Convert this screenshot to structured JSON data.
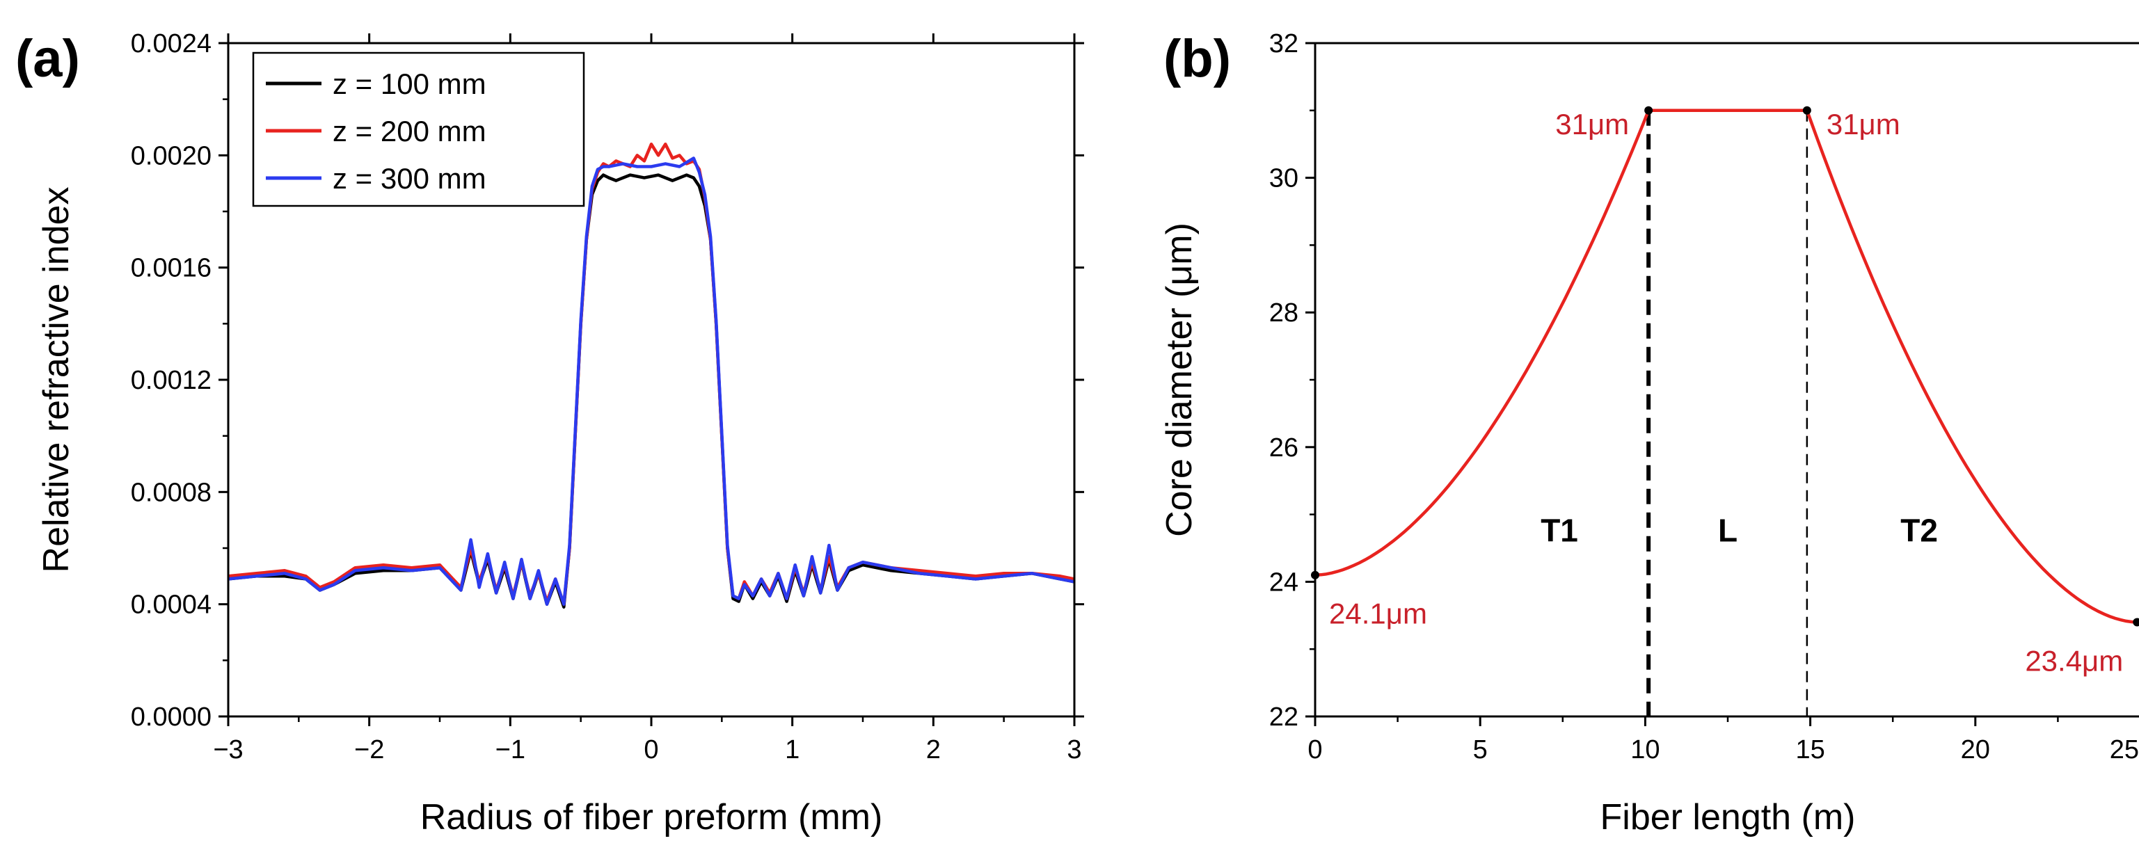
{
  "chart_data": [
    {
      "panel": "(a)",
      "type": "line",
      "title": "",
      "xlabel": "Radius of fiber preform (mm)",
      "ylabel": "Relative refractive index",
      "xlim": [
        -3,
        3
      ],
      "ylim": [
        0,
        0.0024
      ],
      "xticks": [
        -3,
        -2,
        -1,
        0,
        1,
        2,
        3
      ],
      "xtick_labels": [
        "−3",
        "−2",
        "−1",
        "0",
        "1",
        "2",
        "3"
      ],
      "yticks": [
        0,
        0.0004,
        0.0008,
        0.0012,
        0.0016,
        0.002,
        0.0024
      ],
      "ytick_labels": [
        "0.0000",
        "0.0004",
        "0.0008",
        "0.0012",
        "0.0016",
        "0.0020",
        "0.0024"
      ],
      "grid": false,
      "legend": "top-left",
      "series": [
        {
          "name": "z = 100 mm",
          "color": "#000000",
          "x": [
            -3.0,
            -2.8,
            -2.6,
            -2.45,
            -2.35,
            -2.25,
            -2.1,
            -1.9,
            -1.7,
            -1.5,
            -1.35,
            -1.28,
            -1.22,
            -1.16,
            -1.1,
            -1.04,
            -0.98,
            -0.92,
            -0.86,
            -0.8,
            -0.74,
            -0.68,
            -0.62,
            -0.58,
            -0.54,
            -0.5,
            -0.46,
            -0.42,
            -0.38,
            -0.34,
            -0.3,
            -0.25,
            -0.15,
            -0.05,
            0.05,
            0.15,
            0.25,
            0.3,
            0.34,
            0.38,
            0.42,
            0.46,
            0.5,
            0.54,
            0.58,
            0.62,
            0.66,
            0.72,
            0.78,
            0.84,
            0.9,
            0.96,
            1.02,
            1.08,
            1.14,
            1.2,
            1.26,
            1.32,
            1.4,
            1.5,
            1.7,
            1.9,
            2.1,
            2.3,
            2.5,
            2.7,
            2.9,
            3.0
          ],
          "y": [
            0.00049,
            0.0005,
            0.0005,
            0.00049,
            0.00045,
            0.00047,
            0.00051,
            0.00052,
            0.00052,
            0.00053,
            0.00045,
            0.00059,
            0.00047,
            0.00056,
            0.00044,
            0.00053,
            0.00042,
            0.00055,
            0.00042,
            0.00051,
            0.0004,
            0.00048,
            0.00039,
            0.0006,
            0.001,
            0.0014,
            0.0017,
            0.00186,
            0.00191,
            0.00193,
            0.00192,
            0.00191,
            0.00193,
            0.00192,
            0.00193,
            0.00191,
            0.00193,
            0.00192,
            0.00189,
            0.00182,
            0.0017,
            0.0014,
            0.001,
            0.0006,
            0.00042,
            0.00041,
            0.00047,
            0.00042,
            0.00048,
            0.00043,
            0.0005,
            0.00041,
            0.00052,
            0.00043,
            0.00054,
            0.00044,
            0.00056,
            0.00045,
            0.00052,
            0.00054,
            0.00052,
            0.00051,
            0.0005,
            0.00049,
            0.0005,
            0.00051,
            0.00049,
            0.00048
          ]
        },
        {
          "name": "z = 200 mm",
          "color": "#e8231f",
          "x": [
            -3.0,
            -2.8,
            -2.6,
            -2.45,
            -2.35,
            -2.25,
            -2.1,
            -1.9,
            -1.7,
            -1.5,
            -1.35,
            -1.28,
            -1.22,
            -1.16,
            -1.1,
            -1.04,
            -0.98,
            -0.92,
            -0.86,
            -0.8,
            -0.74,
            -0.68,
            -0.62,
            -0.58,
            -0.54,
            -0.5,
            -0.46,
            -0.42,
            -0.38,
            -0.34,
            -0.3,
            -0.25,
            -0.15,
            -0.1,
            -0.05,
            0.0,
            0.05,
            0.1,
            0.15,
            0.2,
            0.25,
            0.3,
            0.34,
            0.38,
            0.42,
            0.46,
            0.5,
            0.54,
            0.58,
            0.62,
            0.66,
            0.72,
            0.78,
            0.84,
            0.9,
            0.96,
            1.02,
            1.08,
            1.14,
            1.2,
            1.26,
            1.32,
            1.4,
            1.5,
            1.7,
            1.9,
            2.1,
            2.3,
            2.5,
            2.7,
            2.9,
            3.0
          ],
          "y": [
            0.0005,
            0.00051,
            0.00052,
            0.0005,
            0.00046,
            0.00048,
            0.00053,
            0.00054,
            0.00053,
            0.00054,
            0.00046,
            0.0006,
            0.00048,
            0.00057,
            0.00045,
            0.00054,
            0.00043,
            0.00055,
            0.00043,
            0.00051,
            0.00041,
            0.00049,
            0.0004,
            0.0006,
            0.001,
            0.0014,
            0.0017,
            0.00188,
            0.00194,
            0.00197,
            0.00196,
            0.00198,
            0.00196,
            0.002,
            0.00198,
            0.00204,
            0.002,
            0.00204,
            0.00199,
            0.002,
            0.00197,
            0.00198,
            0.00195,
            0.00185,
            0.0017,
            0.0014,
            0.001,
            0.0006,
            0.00043,
            0.00042,
            0.00048,
            0.00043,
            0.00049,
            0.00044,
            0.00051,
            0.00042,
            0.00053,
            0.00044,
            0.00055,
            0.00045,
            0.00057,
            0.00046,
            0.00053,
            0.00055,
            0.00053,
            0.00052,
            0.00051,
            0.0005,
            0.00051,
            0.00051,
            0.0005,
            0.00049
          ]
        },
        {
          "name": "z = 300 mm",
          "color": "#2b3bef",
          "x": [
            -3.0,
            -2.8,
            -2.6,
            -2.45,
            -2.35,
            -2.25,
            -2.1,
            -1.9,
            -1.7,
            -1.5,
            -1.35,
            -1.28,
            -1.22,
            -1.16,
            -1.1,
            -1.04,
            -0.98,
            -0.92,
            -0.86,
            -0.8,
            -0.74,
            -0.68,
            -0.62,
            -0.58,
            -0.54,
            -0.5,
            -0.46,
            -0.42,
            -0.38,
            -0.34,
            -0.3,
            -0.2,
            -0.1,
            0.0,
            0.1,
            0.2,
            0.3,
            0.34,
            0.38,
            0.42,
            0.46,
            0.5,
            0.54,
            0.58,
            0.62,
            0.66,
            0.72,
            0.78,
            0.84,
            0.9,
            0.96,
            1.02,
            1.08,
            1.14,
            1.2,
            1.26,
            1.32,
            1.4,
            1.5,
            1.7,
            1.9,
            2.1,
            2.3,
            2.5,
            2.7,
            2.9,
            3.0
          ],
          "y": [
            0.00049,
            0.0005,
            0.00051,
            0.00049,
            0.00045,
            0.00047,
            0.00052,
            0.00053,
            0.00052,
            0.00053,
            0.00045,
            0.00063,
            0.00046,
            0.00058,
            0.00044,
            0.00055,
            0.00042,
            0.00056,
            0.00042,
            0.00052,
            0.0004,
            0.00049,
            0.0004,
            0.00061,
            0.00101,
            0.00141,
            0.00171,
            0.00189,
            0.00195,
            0.00196,
            0.00196,
            0.00197,
            0.00196,
            0.00196,
            0.00197,
            0.00196,
            0.00199,
            0.00194,
            0.00186,
            0.00171,
            0.00141,
            0.00101,
            0.00061,
            0.00043,
            0.00042,
            0.00047,
            0.00043,
            0.00049,
            0.00043,
            0.00051,
            0.00042,
            0.00054,
            0.00043,
            0.00057,
            0.00044,
            0.00061,
            0.00045,
            0.00053,
            0.00055,
            0.00053,
            0.00051,
            0.0005,
            0.00049,
            0.0005,
            0.00051,
            0.00049,
            0.00048
          ]
        }
      ]
    },
    {
      "panel": "(b)",
      "type": "line",
      "title": "",
      "xlabel": "Fiber length (m)",
      "ylabel": "Core diameter (μm)",
      "xlim": [
        0,
        25
      ],
      "ylim": [
        22,
        32
      ],
      "xticks": [
        0,
        5,
        10,
        15,
        20,
        25
      ],
      "xtick_labels": [
        "0",
        "5",
        "10",
        "15",
        "20",
        "25"
      ],
      "yticks": [
        22,
        24,
        26,
        28,
        30,
        32
      ],
      "ytick_labels": [
        "22",
        "24",
        "26",
        "28",
        "30",
        "32"
      ],
      "grid": false,
      "line_color": "#e8231f",
      "sections": [
        {
          "name": "T1",
          "x": [
            0,
            10.1
          ],
          "start_y": 24.1,
          "end_y": 31
        },
        {
          "name": "L",
          "x": [
            10.1,
            14.9
          ],
          "start_y": 31,
          "end_y": 31
        },
        {
          "name": "T2",
          "x": [
            14.9,
            24.9
          ],
          "start_y": 31,
          "end_y": 23.4
        }
      ],
      "dividers": [
        {
          "x": 10.1,
          "style": "thick-dashed"
        },
        {
          "x": 14.9,
          "style": "thin-dashed"
        }
      ],
      "points": [
        {
          "x": 0,
          "y": 24.1,
          "label": "24.1μm"
        },
        {
          "x": 10.1,
          "y": 31,
          "label": "31μm"
        },
        {
          "x": 14.9,
          "y": 31,
          "label": "31μm"
        },
        {
          "x": 24.9,
          "y": 23.4,
          "label": "23.4μm"
        }
      ],
      "region_labels": [
        {
          "text": "T1",
          "x": 7.4,
          "y": 24.6
        },
        {
          "text": "L",
          "x": 12.5,
          "y": 24.6
        },
        {
          "text": "T2",
          "x": 18.3,
          "y": 24.6
        }
      ]
    }
  ]
}
